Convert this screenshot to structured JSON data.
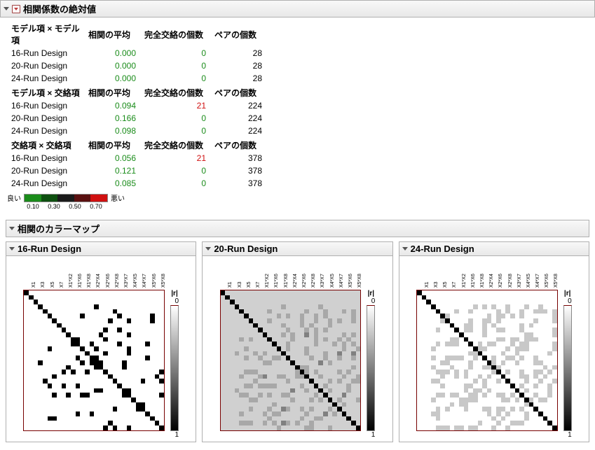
{
  "section1": {
    "title": "相関係数の絶対値",
    "groups": [
      {
        "header": [
          "モデル項 × モデル項",
          "相関の平均",
          "完全交絡の個数",
          "ペアの個数"
        ],
        "rows": [
          {
            "design": "16-Run Design",
            "avg": "0.000",
            "avg_color": "green",
            "confound": "0",
            "confound_color": "green",
            "pairs": "28"
          },
          {
            "design": "20-Run Design",
            "avg": "0.000",
            "avg_color": "green",
            "confound": "0",
            "confound_color": "green",
            "pairs": "28"
          },
          {
            "design": "24-Run Design",
            "avg": "0.000",
            "avg_color": "green",
            "confound": "0",
            "confound_color": "green",
            "pairs": "28"
          }
        ]
      },
      {
        "header": [
          "モデル項 × 交絡項",
          "相関の平均",
          "完全交絡の個数",
          "ペアの個数"
        ],
        "rows": [
          {
            "design": "16-Run Design",
            "avg": "0.094",
            "avg_color": "green",
            "confound": "21",
            "confound_color": "red",
            "pairs": "224"
          },
          {
            "design": "20-Run Design",
            "avg": "0.166",
            "avg_color": "green",
            "confound": "0",
            "confound_color": "green",
            "pairs": "224"
          },
          {
            "design": "24-Run Design",
            "avg": "0.098",
            "avg_color": "green",
            "confound": "0",
            "confound_color": "green",
            "pairs": "224"
          }
        ]
      },
      {
        "header": [
          "交絡項 × 交絡項",
          "相関の平均",
          "完全交絡の個数",
          "ペアの個数"
        ],
        "rows": [
          {
            "design": "16-Run Design",
            "avg": "0.056",
            "avg_color": "green",
            "confound": "21",
            "confound_color": "red",
            "pairs": "378"
          },
          {
            "design": "20-Run Design",
            "avg": "0.121",
            "avg_color": "green",
            "confound": "0",
            "confound_color": "green",
            "pairs": "378"
          },
          {
            "design": "24-Run Design",
            "avg": "0.085",
            "avg_color": "green",
            "confound": "0",
            "confound_color": "green",
            "pairs": "378"
          }
        ]
      }
    ],
    "legend": {
      "good": "良い",
      "bad": "悪い",
      "colors": [
        "#1a8c1a",
        "#0e5010",
        "#1a1a1a",
        "#5a1010",
        "#d01010"
      ],
      "ticks": [
        "0.10",
        "0.30",
        "0.50",
        "0.70"
      ]
    }
  },
  "section2": {
    "title": "相関のカラーマップ",
    "axis_labels": [
      "X1",
      "X3",
      "X5",
      "X7",
      "X1*X2",
      "X1*X4",
      "X1*X6",
      "X1*X8",
      "X2*X4",
      "X2*X6",
      "X2*X8",
      "X3*X5",
      "X3*X7",
      "X4*X5",
      "X4*X7",
      "X5*X6",
      "X5*X8",
      "X6*X8"
    ],
    "panels": [
      {
        "title": "16-Run Design",
        "matrix_n": 30,
        "bg": "#ffffff",
        "fg_levels": {
          "0": "#ffffff",
          "1": "#d8d8d8",
          "9": "#000000"
        },
        "off": "000000000000000000000000000000000000000000000000000000000000000000000000000000000000000000000009000000000000000000000000000090000000000000000900000009000000900000000000009000900009000000000000000000000000000000009009000000000000000900000900000009000009000000000000009000009000009000009000000900000000009000090000000900000000009000900009000000000000900000000000000000009000000000900000090009000000000900000000000009000000900",
        "colorbar_label": "|r|",
        "colorbar_min": "0",
        "colorbar_max": "1"
      },
      {
        "title": "20-Run Design",
        "matrix_n": 30,
        "bg": "#d0d0d0",
        "fg_levels": {
          "0": "#d0d0d0",
          "1": "#a8a8a8",
          "5": "#808080",
          "9": "#000000"
        },
        "off": "000000000000000000000000000000000000000000000000000000000000000000000000000000000000000000000100000001000000000000010000000100010001010000000101001001010000010000100000010010010100100000010001010001000000000001000101010000000000101005010000010100000100001010010100001000001000101010010001000000010010000100010050050000010010010010000005010000001100000000010101000010100001000010010001010011010000100010001000005000010001010",
        "colorbar_label": "|r|",
        "colorbar_min": "0",
        "colorbar_max": "1"
      },
      {
        "title": "24-Run Design",
        "matrix_n": 30,
        "bg": "#ffffff",
        "fg_levels": {
          "0": "#ffffff",
          "1": "#c8c8c8",
          "5": "#888888",
          "9": "#000000"
        },
        "off": "000000000000000000000000000000000000000000000000000000000000000000000000000000000000000000001010100100010010000001001000001010010011101100000000101101010000001000010011010000000100010011001010000010100000011001001100010000001000010000000011000010000001101101110000010110001011000001110000101110000010000100100000010010011010010000101001000110001000000000101010010011010000110101000001001001010010010010000100010010101100000",
        "colorbar_label": "|r|",
        "colorbar_min": "0",
        "colorbar_max": "1"
      }
    ]
  }
}
